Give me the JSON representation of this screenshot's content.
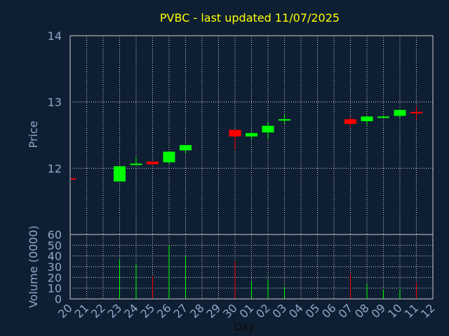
{
  "chart_data": {
    "type": "candlestick",
    "title": "PVBC - last updated 11/07/2025",
    "xlabel": "Day",
    "price_axis": {
      "label": "Price",
      "range": [
        11.0,
        14.0
      ],
      "ticks": [
        12,
        13,
        14
      ],
      "tick_labels": [
        "12",
        "13",
        "14"
      ]
    },
    "volume_axis": {
      "label": "Volume (0000)",
      "range": [
        0,
        60
      ],
      "ticks": [
        0,
        10,
        20,
        30,
        40,
        50,
        60
      ],
      "tick_labels": [
        "0",
        "10",
        "20",
        "30",
        "40",
        "50",
        "60"
      ]
    },
    "x_tick_labels": [
      "20",
      "21",
      "22",
      "23",
      "24",
      "25",
      "26",
      "27",
      "28",
      "29",
      "30",
      "01",
      "02",
      "03",
      "04",
      "05",
      "06",
      "07",
      "08",
      "09",
      "10",
      "11",
      "12"
    ],
    "grid": true,
    "colors": {
      "background": "#0f1f33",
      "text": "#8fa6c8",
      "title": "#ffff00",
      "grid": "#cccccc",
      "up": "#00ff00",
      "down": "#ff0000"
    },
    "candles": [
      {
        "day": "20",
        "open": 11.85,
        "high": 11.86,
        "low": 11.84,
        "close": 11.84,
        "volume": 0
      },
      {
        "day": "23",
        "open": 11.8,
        "high": 12.03,
        "low": 11.8,
        "close": 12.03,
        "volume": 37
      },
      {
        "day": "24",
        "open": 12.05,
        "high": 12.16,
        "low": 12.05,
        "close": 12.07,
        "volume": 32
      },
      {
        "day": "25",
        "open": 12.1,
        "high": 12.1,
        "low": 12.06,
        "close": 12.06,
        "volume": 21
      },
      {
        "day": "26",
        "open": 12.09,
        "high": 12.25,
        "low": 12.07,
        "close": 12.25,
        "volume": 50
      },
      {
        "day": "27",
        "open": 12.27,
        "high": 12.35,
        "low": 12.22,
        "close": 12.35,
        "volume": 40
      },
      {
        "day": "30",
        "open": 12.58,
        "high": 12.58,
        "low": 12.28,
        "close": 12.48,
        "volume": 35
      },
      {
        "day": "01",
        "open": 12.48,
        "high": 12.55,
        "low": 12.44,
        "close": 12.53,
        "volume": 16
      },
      {
        "day": "02",
        "open": 12.54,
        "high": 12.69,
        "low": 12.44,
        "close": 12.64,
        "volume": 18
      },
      {
        "day": "03",
        "open": 12.72,
        "high": 12.81,
        "low": 12.67,
        "close": 12.74,
        "volume": 11
      },
      {
        "day": "07",
        "open": 12.74,
        "high": 12.78,
        "low": 12.62,
        "close": 12.67,
        "volume": 23
      },
      {
        "day": "08",
        "open": 12.71,
        "high": 12.8,
        "low": 12.65,
        "close": 12.78,
        "volume": 14
      },
      {
        "day": "09",
        "open": 12.78,
        "high": 12.8,
        "low": 12.76,
        "close": 12.78,
        "volume": 9
      },
      {
        "day": "10",
        "open": 12.79,
        "high": 12.89,
        "low": 12.76,
        "close": 12.88,
        "volume": 9
      },
      {
        "day": "11",
        "open": 12.85,
        "high": 12.93,
        "low": 12.73,
        "close": 12.83,
        "volume": 15
      }
    ]
  }
}
